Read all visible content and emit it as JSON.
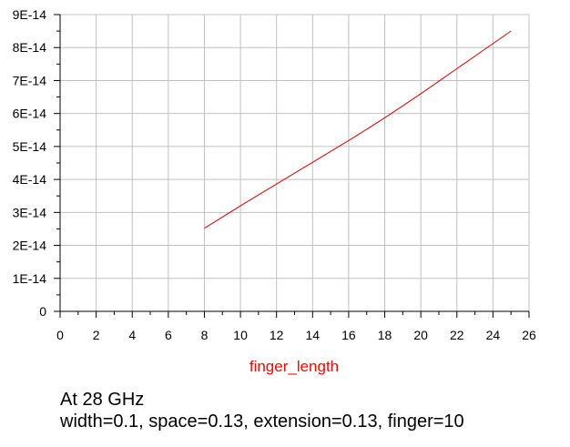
{
  "chart_data": {
    "type": "line",
    "title": "",
    "xlabel": "finger_length",
    "ylabel": "",
    "xlim": [
      0,
      26
    ],
    "ylim": [
      0,
      9e-14
    ],
    "x_ticks": [
      0,
      2,
      4,
      6,
      8,
      10,
      12,
      14,
      16,
      18,
      20,
      22,
      24,
      26
    ],
    "x_tick_labels": [
      "0",
      "2",
      "4",
      "6",
      "8",
      "10",
      "12",
      "14",
      "16",
      "18",
      "20",
      "22",
      "24",
      "26"
    ],
    "y_ticks": [
      0,
      1e-14,
      2e-14,
      3e-14,
      4e-14,
      5e-14,
      6e-14,
      7e-14,
      8e-14,
      9e-14
    ],
    "y_tick_labels": [
      "0",
      "1E-14",
      "2E-14",
      "3E-14",
      "4E-14",
      "5E-14",
      "6E-14",
      "7E-14",
      "8E-14",
      "9E-14"
    ],
    "grid": true,
    "series": [
      {
        "color": "#cc0000",
        "x": [
          8,
          9,
          10,
          11,
          12,
          13,
          14,
          15,
          16,
          17,
          18,
          19,
          20,
          21,
          22,
          23,
          24,
          25
        ],
        "y": [
          2.52e-14,
          2.86e-14,
          3.2e-14,
          3.53e-14,
          3.86e-14,
          4.19e-14,
          4.52e-14,
          4.85e-14,
          5.18e-14,
          5.52e-14,
          5.87e-14,
          6.23e-14,
          6.6e-14,
          6.98e-14,
          7.36e-14,
          7.74e-14,
          8.12e-14,
          8.5e-14
        ]
      }
    ],
    "colors": {
      "grid": "#c0c0c0",
      "axis": "#000000",
      "xlabel": "#ff0000"
    }
  },
  "caption": {
    "line1": "At 28 GHz",
    "line2": "width=0.1, space=0.13, extension=0.13, finger=10"
  }
}
